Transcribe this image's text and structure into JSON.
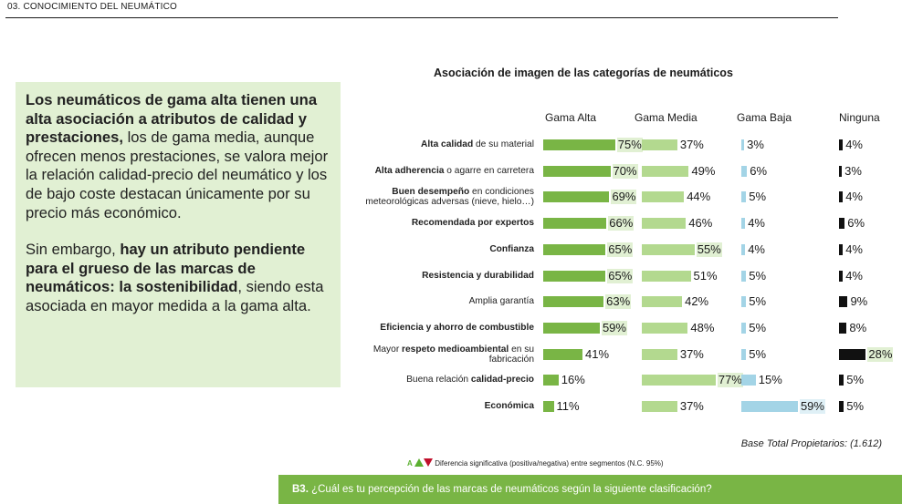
{
  "section": {
    "title": "03. CONOCIMIENTO DEL NEUMÁTICO"
  },
  "sidebar": {
    "p1": [
      {
        "text": "Los neumáticos de gama alta tienen una alta asociación a atributos de calidad y prestaciones,",
        "bold": true
      },
      {
        "text": " los de gama media, aunque ofrecen menos prestaciones, se valora mejor la relación calidad-precio del neumático y los de bajo coste destacan únicamente por su precio más económico.",
        "bold": false
      }
    ],
    "p2": [
      {
        "text": "Sin embargo, ",
        "bold": false
      },
      {
        "text": "hay un atributo pendiente para el grueso de las marcas de neumáticos: la sostenibilidad",
        "bold": true
      },
      {
        "text": ", siendo esta asociada en mayor medida a la gama alta.",
        "bold": false
      }
    ]
  },
  "chart_data": {
    "type": "bar",
    "title": "Asociación de imagen de las categorías de neumáticos",
    "unit": "%",
    "series": [
      {
        "name": "Gama Alta",
        "color": "#79b545",
        "values": [
          75,
          70,
          69,
          66,
          65,
          65,
          63,
          59,
          41,
          16,
          11
        ]
      },
      {
        "name": "Gama Media",
        "color": "#b3d98f",
        "values": [
          37,
          49,
          44,
          46,
          55,
          51,
          42,
          48,
          37,
          77,
          37
        ]
      },
      {
        "name": "Gama Baja",
        "color": "#a3d4e6",
        "values": [
          3,
          6,
          5,
          4,
          4,
          5,
          5,
          5,
          5,
          15,
          59
        ]
      },
      {
        "name": "Ninguna",
        "color": "#111111",
        "values": [
          4,
          3,
          4,
          6,
          4,
          4,
          9,
          8,
          28,
          5,
          5
        ]
      }
    ],
    "categories": [
      [
        {
          "t": "Alta calidad",
          "b": true
        },
        {
          "t": " de su material",
          "b": false
        }
      ],
      [
        {
          "t": "Alta adherencia",
          "b": true
        },
        {
          "t": " o agarre en carretera",
          "b": false
        }
      ],
      [
        {
          "t": "Buen desempeño",
          "b": true
        },
        {
          "t": " en condiciones meteorológicas adversas (nieve, hielo…)",
          "b": false
        }
      ],
      [
        {
          "t": "Recomendada por expertos",
          "b": true
        }
      ],
      [
        {
          "t": "Confianza",
          "b": true
        }
      ],
      [
        {
          "t": "Resistencia y durabilidad",
          "b": true
        }
      ],
      [
        {
          "t": "Amplia garantía",
          "b": false
        }
      ],
      [
        {
          "t": "Eficiencia y ahorro de combustible",
          "b": true
        }
      ],
      [
        {
          "t": "Mayor ",
          "b": false
        },
        {
          "t": "respeto medioambiental",
          "b": true
        },
        {
          "t": " en su fabricación",
          "b": false
        }
      ],
      [
        {
          "t": "Buena relación ",
          "b": false
        },
        {
          "t": "calidad-precio",
          "b": true
        }
      ],
      [
        {
          "t": "Económica",
          "b": true
        }
      ]
    ],
    "highlighted": {
      "Gama Alta": [
        0,
        1,
        2,
        3,
        4,
        5,
        6,
        7
      ],
      "Gama Media": [
        4,
        9
      ],
      "Gama Baja": [
        10
      ],
      "Ninguna": [
        8
      ]
    }
  },
  "notes": {
    "base": "Base Total Propietarios: (1.612)",
    "legend_letter": "A",
    "legend_text": "Diferencia significativa (positiva/negativa) entre segmentos (N.C. 95%)"
  },
  "footer": {
    "question_id": "B3.",
    "question": " ¿Cuál es tu percepción de las marcas de neumáticos según la siguiente clasificación?"
  }
}
